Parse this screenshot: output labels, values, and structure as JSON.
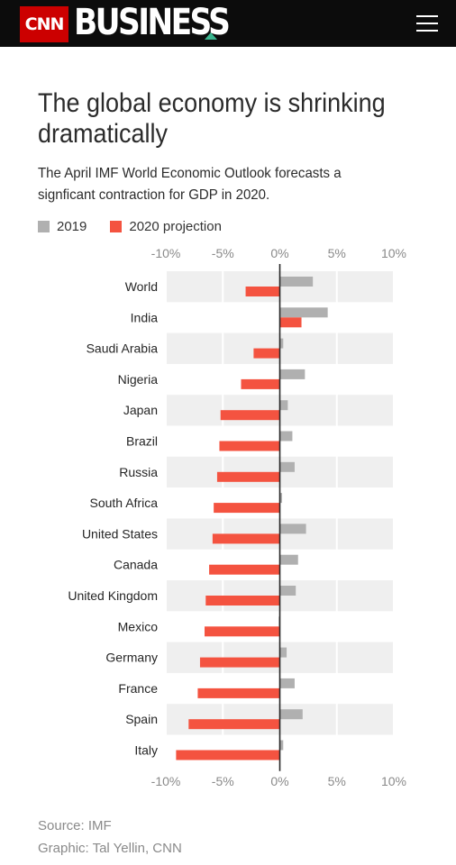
{
  "header": {
    "logo_text": "CNN",
    "section_title": "BUSINESS",
    "menu_icon": "hamburger-menu-icon"
  },
  "headline": "The global economy is shrinking dramatically",
  "subheadline": "The April IMF World Economic Outlook forecasts a signficant contraction for GDP in 2020.",
  "colors": {
    "series_2019": "#b0b0b0",
    "series_2020": "#f45340",
    "brand_red": "#cc0000",
    "accent_green": "#3bb58f"
  },
  "chart_data": {
    "type": "bar",
    "orientation": "horizontal",
    "categories": [
      "World",
      "India",
      "Saudi Arabia",
      "Nigeria",
      "Japan",
      "Brazil",
      "Russia",
      "South Africa",
      "United States",
      "Canada",
      "United Kingdom",
      "Mexico",
      "Germany",
      "France",
      "Spain",
      "Italy"
    ],
    "series": [
      {
        "name": "2019",
        "values": [
          2.9,
          4.2,
          0.3,
          2.2,
          0.7,
          1.1,
          1.3,
          0.2,
          2.3,
          1.6,
          1.4,
          -0.1,
          0.6,
          1.3,
          2.0,
          0.3
        ]
      },
      {
        "name": "2020 projection",
        "values": [
          -3.0,
          1.9,
          -2.3,
          -3.4,
          -5.2,
          -5.3,
          -5.5,
          -5.8,
          -5.9,
          -6.2,
          -6.5,
          -6.6,
          -7.0,
          -7.2,
          -8.0,
          -9.1
        ]
      }
    ],
    "xlim": [
      -10,
      10
    ],
    "xticks": [
      -10,
      -5,
      0,
      5,
      10
    ],
    "xtick_labels": [
      "-10%",
      "-5%",
      "0%",
      "5%",
      "10%"
    ],
    "grid": true,
    "legend_position": "top-left"
  },
  "footer": {
    "source": "Source: IMF",
    "credit": "Graphic: Tal Yellin, CNN"
  }
}
